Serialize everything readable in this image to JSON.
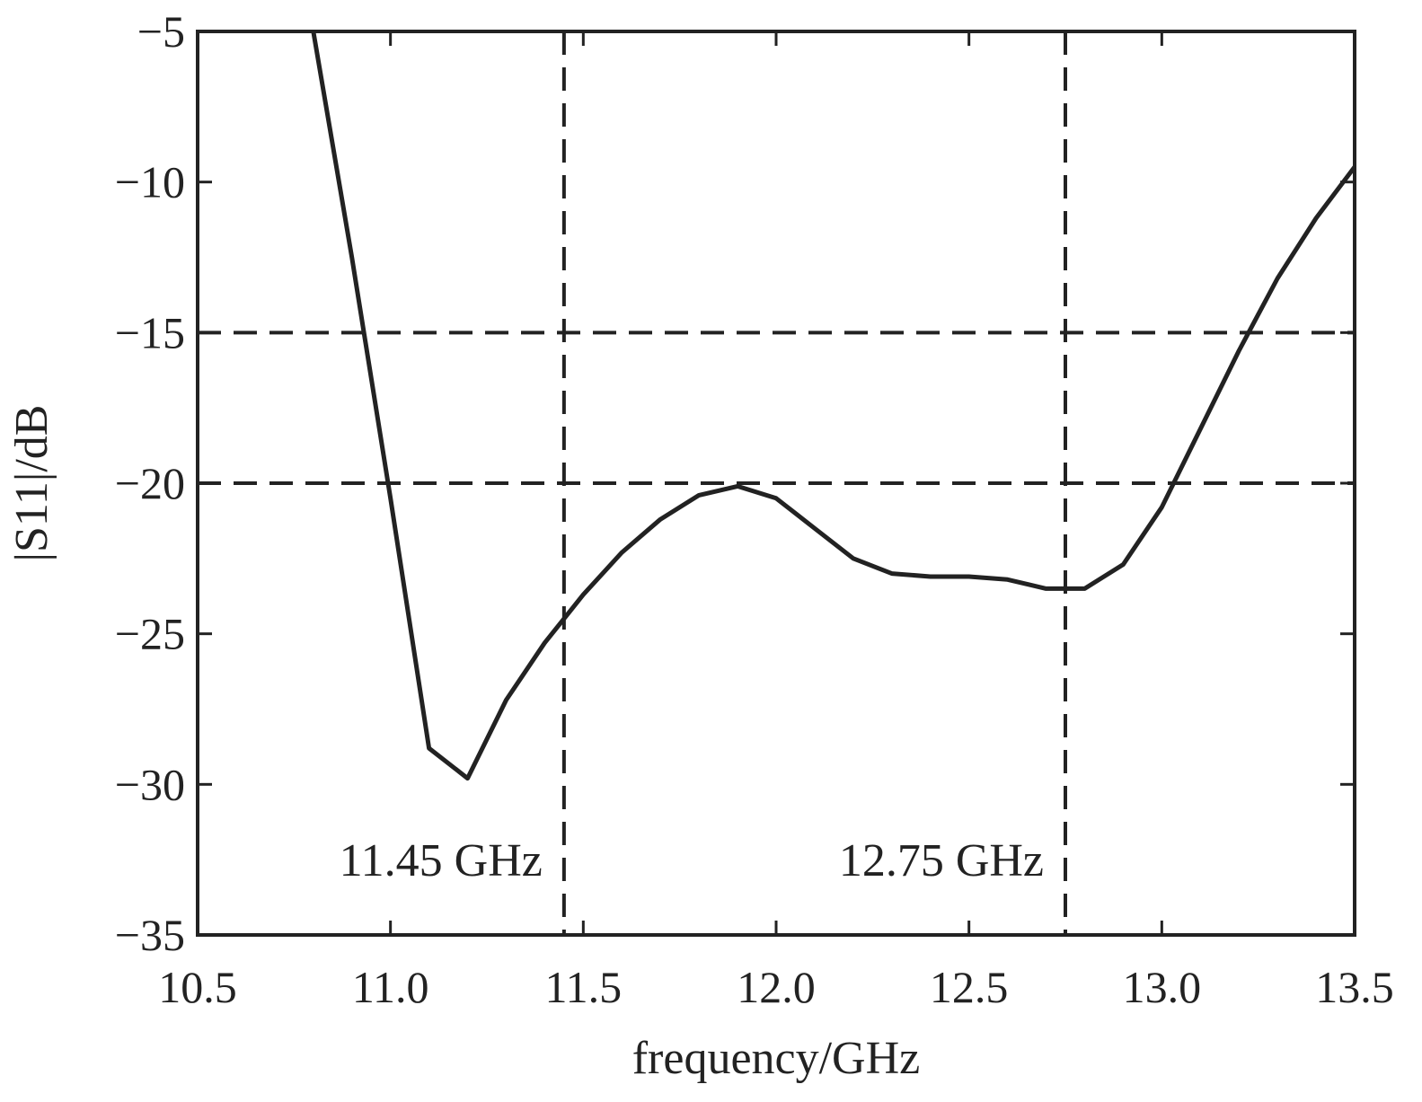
{
  "chart_data": {
    "type": "line",
    "title": "",
    "xlabel": "frequency/GHz",
    "ylabel": "|S11|/dB",
    "xlim": [
      10.5,
      13.5
    ],
    "ylim": [
      -35,
      -5
    ],
    "xticks": [
      "10.5",
      "11.0",
      "11.5",
      "12.0",
      "12.5",
      "13.0",
      "13.5"
    ],
    "yticks": [
      "−5",
      "−10",
      "−15",
      "−20",
      "−25",
      "−30",
      "−35"
    ],
    "grid": false,
    "legend": "none",
    "series": [
      {
        "color": "#222222",
        "x": [
          10.8,
          10.9,
          11.0,
          11.1,
          11.2,
          11.3,
          11.4,
          11.5,
          11.6,
          11.7,
          11.8,
          11.9,
          12.0,
          12.1,
          12.2,
          12.3,
          12.4,
          12.5,
          12.6,
          12.7,
          12.8,
          12.9,
          13.0,
          13.1,
          13.2,
          13.3,
          13.4,
          13.5
        ],
        "y": [
          -5.0,
          -12.5,
          -20.5,
          -28.8,
          -29.8,
          -27.2,
          -25.3,
          -23.7,
          -22.3,
          -21.2,
          -20.4,
          -20.1,
          -20.5,
          -21.5,
          -22.5,
          -23.0,
          -23.1,
          -23.1,
          -23.2,
          -23.5,
          -23.5,
          -22.7,
          -20.8,
          -18.2,
          -15.6,
          -13.2,
          -11.2,
          -9.5
        ]
      }
    ],
    "reference_lines": {
      "vertical": [
        11.45,
        12.75
      ],
      "horizontal": [
        -15,
        -20
      ],
      "style": "dashed",
      "color": "#222222"
    },
    "annotations": [
      {
        "text": "11.45 GHz",
        "x": 11.45
      },
      {
        "text": "12.75 GHz",
        "x": 12.75
      }
    ]
  }
}
